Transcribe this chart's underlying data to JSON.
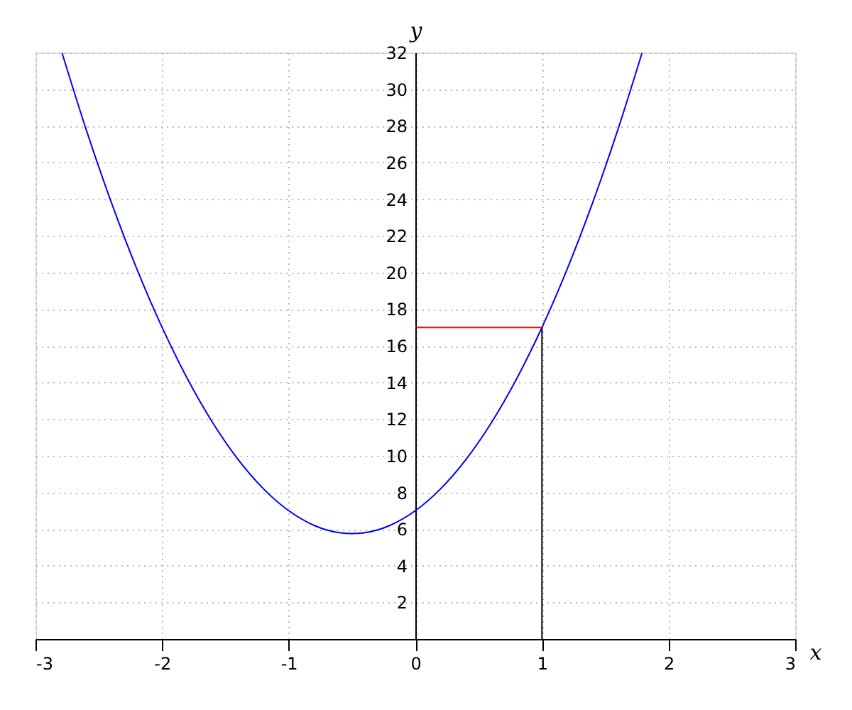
{
  "chart_data": {
    "type": "line",
    "xlabel": "x",
    "ylabel": "y",
    "xlim": [
      -3,
      3
    ],
    "xticks": [
      -3,
      -2,
      -1,
      0,
      1,
      2,
      3
    ],
    "ylim": [
      0,
      32
    ],
    "yticks": [
      2,
      4,
      6,
      8,
      10,
      12,
      14,
      16,
      18,
      20,
      22,
      24,
      26,
      28,
      30,
      32
    ],
    "grid": true,
    "marker": "none",
    "line_style": "solid",
    "series": [
      {
        "color": "#0000ff",
        "x": [
          -2.79,
          -2.6,
          -2.4,
          -2.2,
          -2.0,
          -1.8,
          -1.6,
          -1.4,
          -1.2,
          -1.0,
          -0.8,
          -0.6,
          -0.5,
          -0.4,
          -0.2,
          0,
          0.2,
          0.4,
          0.6,
          0.8,
          1.0,
          1.2,
          1.4,
          1.6,
          1.79
        ],
        "values": [
          31.97,
          27.8,
          23.8,
          20.2,
          17,
          14.2,
          11.8,
          9.8,
          8.2,
          7,
          6.2,
          5.8,
          5.75,
          5.8,
          6.2,
          7,
          8.2,
          9.8,
          11.8,
          14.2,
          17,
          20.2,
          23.8,
          27.8,
          31.97
        ]
      },
      {
        "color": "#ff0000",
        "x": [
          0,
          1
        ],
        "values": [
          17,
          17
        ]
      },
      {
        "color": "#000000",
        "x": [
          1,
          1
        ],
        "values": [
          0,
          17
        ]
      }
    ]
  }
}
